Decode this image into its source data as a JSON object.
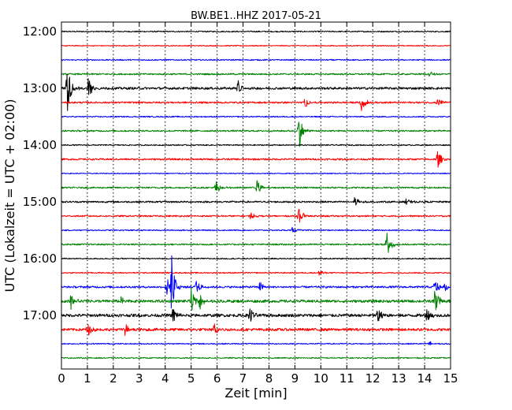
{
  "chart_data": {
    "type": "line",
    "title": "BW.BE1..HHZ 2017-05-21",
    "xlabel": "Zeit  [min]",
    "ylabel": "UTC (Lokalzeit = UTC + 02:00)",
    "xlim": [
      0,
      15
    ],
    "x_ticks": [
      "0",
      "1",
      "2",
      "3",
      "4",
      "5",
      "6",
      "7",
      "8",
      "9",
      "10",
      "11",
      "12",
      "13",
      "14",
      "15"
    ],
    "y_tick_labels": [
      "12:00",
      "13:00",
      "14:00",
      "15:00",
      "16:00",
      "17:00"
    ],
    "y_tick_rows": [
      0,
      4,
      8,
      12,
      16,
      20
    ],
    "grid": true,
    "colors": [
      "#000000",
      "#ff0000",
      "#0000ff",
      "#008000"
    ],
    "rows": [
      {
        "time": "12:00",
        "noise": 0.6,
        "events": []
      },
      {
        "time": "12:15",
        "noise": 0.5,
        "events": []
      },
      {
        "time": "12:30",
        "noise": 0.6,
        "events": []
      },
      {
        "time": "12:45",
        "noise": 0.8,
        "events": [
          {
            "t": 14.2,
            "amp": 0.25
          }
        ]
      },
      {
        "time": "13:00",
        "noise": 1.2,
        "events": [
          {
            "t": 0.22,
            "amp": 1.9
          },
          {
            "t": 1.05,
            "amp": 1.0
          },
          {
            "t": 6.8,
            "amp": 0.5
          }
        ]
      },
      {
        "time": "13:15",
        "noise": 0.9,
        "events": [
          {
            "t": 9.4,
            "amp": 0.35
          },
          {
            "t": 11.55,
            "amp": 0.75
          },
          {
            "t": 14.5,
            "amp": 0.3
          }
        ]
      },
      {
        "time": "13:30",
        "noise": 0.6,
        "events": []
      },
      {
        "time": "13:45",
        "noise": 0.8,
        "events": [
          {
            "t": 9.15,
            "amp": 1.3
          }
        ]
      },
      {
        "time": "14:00",
        "noise": 0.6,
        "events": []
      },
      {
        "time": "14:15",
        "noise": 0.9,
        "events": [
          {
            "t": 14.5,
            "amp": 0.6
          }
        ]
      },
      {
        "time": "14:30",
        "noise": 0.5,
        "events": []
      },
      {
        "time": "14:45",
        "noise": 0.8,
        "events": [
          {
            "t": 5.95,
            "amp": 0.5
          },
          {
            "t": 7.55,
            "amp": 0.55
          }
        ]
      },
      {
        "time": "15:00",
        "noise": 0.9,
        "events": [
          {
            "t": 11.3,
            "amp": 0.4
          },
          {
            "t": 13.3,
            "amp": 0.25
          }
        ]
      },
      {
        "time": "15:15",
        "noise": 0.8,
        "events": [
          {
            "t": 7.3,
            "amp": 0.25
          },
          {
            "t": 9.15,
            "amp": 0.65
          }
        ]
      },
      {
        "time": "15:30",
        "noise": 0.6,
        "events": [
          {
            "t": 8.9,
            "amp": 0.2
          }
        ]
      },
      {
        "time": "15:45",
        "noise": 0.8,
        "events": [
          {
            "t": 12.55,
            "amp": 1.2
          }
        ]
      },
      {
        "time": "16:00",
        "noise": 0.6,
        "events": []
      },
      {
        "time": "16:15",
        "noise": 0.6,
        "events": [
          {
            "t": 9.95,
            "amp": 0.25
          }
        ]
      },
      {
        "time": "16:30",
        "noise": 1.0,
        "events": [
          {
            "t": 4.05,
            "amp": 0.7
          },
          {
            "t": 4.25,
            "amp": 1.9
          },
          {
            "t": 5.2,
            "amp": 0.5
          },
          {
            "t": 7.65,
            "amp": 0.35
          },
          {
            "t": 14.4,
            "amp": 0.6
          },
          {
            "t": 14.8,
            "amp": 0.3
          }
        ]
      },
      {
        "time": "16:45",
        "noise": 1.4,
        "events": [
          {
            "t": 0.35,
            "amp": 0.6
          },
          {
            "t": 2.3,
            "amp": 0.3
          },
          {
            "t": 5.0,
            "amp": 0.8
          },
          {
            "t": 5.35,
            "amp": 0.5
          },
          {
            "t": 14.4,
            "amp": 1.0
          }
        ]
      },
      {
        "time": "17:00",
        "noise": 1.5,
        "events": [
          {
            "t": 4.3,
            "amp": 0.6
          },
          {
            "t": 7.25,
            "amp": 0.7
          },
          {
            "t": 12.2,
            "amp": 0.6
          },
          {
            "t": 14.1,
            "amp": 0.6
          }
        ]
      },
      {
        "time": "17:15",
        "noise": 1.4,
        "events": [
          {
            "t": 1.0,
            "amp": 0.5
          },
          {
            "t": 2.45,
            "amp": 0.4
          },
          {
            "t": 5.9,
            "amp": 0.4
          }
        ]
      },
      {
        "time": "17:30",
        "noise": 0.6,
        "events": [
          {
            "t": 14.2,
            "amp": 0.2
          }
        ]
      },
      {
        "time": "17:45",
        "noise": 0.6,
        "events": []
      }
    ]
  }
}
